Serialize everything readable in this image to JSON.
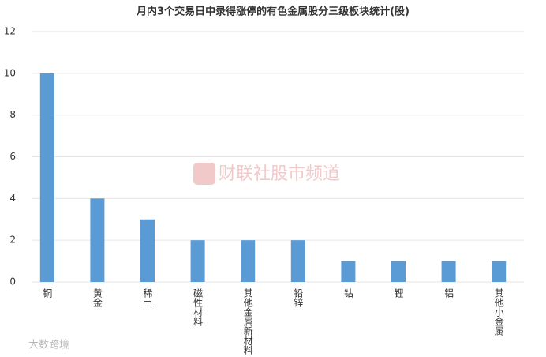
{
  "chart_data": {
    "type": "bar",
    "title": "月内3个交易日中录得涨停的有色金属股分三级板块统计(股)",
    "categories": [
      "铜",
      "黄金",
      "稀土",
      "磁性材料",
      "其他金属新材料",
      "铅锌",
      "钴",
      "锂",
      "铝",
      "其他小金属"
    ],
    "values": [
      10,
      4,
      3,
      2,
      2,
      2,
      1,
      1,
      1,
      1
    ],
    "color": "#5b9bd5",
    "ylim": [
      0,
      12
    ],
    "yticks": [
      0,
      2,
      4,
      6,
      8,
      10,
      12
    ],
    "grid": true,
    "watermark": "财联社股市频道",
    "corner_watermark": "大数跨境"
  }
}
